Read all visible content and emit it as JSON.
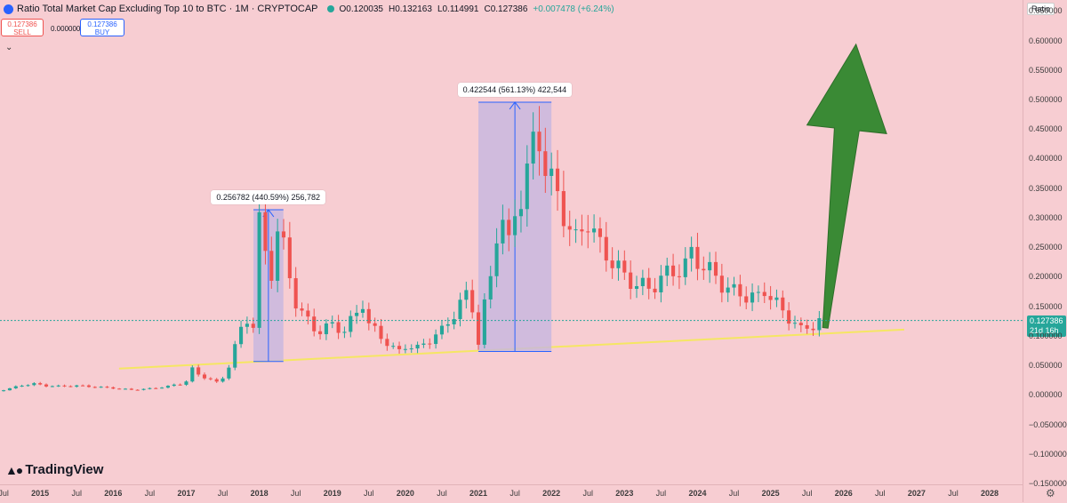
{
  "legend": {
    "title": "Ratio Total Market Cap Excluding Top 10 to BTC · 1M · CRYPTOCAP",
    "open": "O0.120035",
    "high": "H0.132163",
    "low": "L0.114991",
    "close": "C0.127386",
    "change": "+0.007478 (+6.24%)"
  },
  "trade": {
    "sell_price": "0.127386",
    "sell_label": "SELL",
    "spread": "0.000000",
    "buy_price": "0.127386",
    "buy_label": "BUY"
  },
  "price_axis": {
    "badge": "Ratio",
    "current_price": "0.127386",
    "countdown": "21d 16h"
  },
  "logo_text": "TradingView",
  "colors": {
    "background": "#f7cdd2",
    "up": "#26a69a",
    "down": "#ef5350",
    "measure_fill": "#c5b6e0",
    "measure_line": "#2962ff",
    "trendline": "#f5e663",
    "arrow": "#3a8a35"
  },
  "chart_data": {
    "type": "candlestick",
    "title": "Ratio Total Market Cap Excluding Top 10 to BTC",
    "interval": "1M",
    "ylim": [
      -0.15,
      0.67
    ],
    "x_range_years": [
      2014.45,
      2028.45
    ],
    "y_ticks": [
      0.65,
      0.6,
      0.55,
      0.5,
      0.45,
      0.4,
      0.35,
      0.3,
      0.25,
      0.2,
      0.15,
      0.1,
      0.05,
      0.0,
      -0.05,
      -0.1,
      -0.15
    ],
    "y_tick_labels": [
      "0.650000",
      "0.600000",
      "0.550000",
      "0.500000",
      "0.450000",
      "0.400000",
      "0.350000",
      "0.300000",
      "0.250000",
      "0.200000",
      "0.150000",
      "0.100000",
      "0.050000",
      "0.000000",
      "−0.050000",
      "−0.100000",
      "−0.150000"
    ],
    "x_ticks": [
      {
        "t": 2014.5,
        "label": "Jul"
      },
      {
        "t": 2015,
        "label": "2015"
      },
      {
        "t": 2015.5,
        "label": "Jul"
      },
      {
        "t": 2016,
        "label": "2016"
      },
      {
        "t": 2016.5,
        "label": "Jul"
      },
      {
        "t": 2017,
        "label": "2017"
      },
      {
        "t": 2017.5,
        "label": "Jul"
      },
      {
        "t": 2018,
        "label": "2018"
      },
      {
        "t": 2018.5,
        "label": "Jul"
      },
      {
        "t": 2019,
        "label": "2019"
      },
      {
        "t": 2019.5,
        "label": "Jul"
      },
      {
        "t": 2020,
        "label": "2020"
      },
      {
        "t": 2020.5,
        "label": "Jul"
      },
      {
        "t": 2021,
        "label": "2021"
      },
      {
        "t": 2021.5,
        "label": "Jul"
      },
      {
        "t": 2022,
        "label": "2022"
      },
      {
        "t": 2022.5,
        "label": "Jul"
      },
      {
        "t": 2023,
        "label": "2023"
      },
      {
        "t": 2023.5,
        "label": "Jul"
      },
      {
        "t": 2024,
        "label": "2024"
      },
      {
        "t": 2024.5,
        "label": "Jul"
      },
      {
        "t": 2025,
        "label": "2025"
      },
      {
        "t": 2025.5,
        "label": "Jul"
      },
      {
        "t": 2026,
        "label": "2026"
      },
      {
        "t": 2026.5,
        "label": "Jul"
      },
      {
        "t": 2027,
        "label": "2027"
      },
      {
        "t": 2027.5,
        "label": "Jul"
      },
      {
        "t": 2028,
        "label": "2028"
      }
    ],
    "closes": [
      [
        2014.25,
        0.005
      ],
      [
        2014.42,
        0.008
      ],
      [
        2014.58,
        0.012
      ],
      [
        2014.75,
        0.018
      ],
      [
        2014.92,
        0.02
      ],
      [
        2015.08,
        0.017
      ],
      [
        2015.25,
        0.016
      ],
      [
        2015.5,
        0.017
      ],
      [
        2015.75,
        0.015
      ],
      [
        2016.0,
        0.013
      ],
      [
        2016.25,
        0.01
      ],
      [
        2016.5,
        0.012
      ],
      [
        2016.75,
        0.016
      ],
      [
        2016.92,
        0.02
      ],
      [
        2017.0,
        0.025
      ],
      [
        2017.08,
        0.045
      ],
      [
        2017.17,
        0.035
      ],
      [
        2017.25,
        0.032
      ],
      [
        2017.33,
        0.028
      ],
      [
        2017.42,
        0.022
      ],
      [
        2017.5,
        0.03
      ],
      [
        2017.58,
        0.05
      ],
      [
        2017.67,
        0.085
      ],
      [
        2017.75,
        0.11
      ],
      [
        2017.83,
        0.13
      ],
      [
        2017.92,
        0.12
      ],
      [
        2018.0,
        0.29
      ],
      [
        2018.08,
        0.24
      ],
      [
        2018.17,
        0.21
      ],
      [
        2018.25,
        0.28
      ],
      [
        2018.33,
        0.25
      ],
      [
        2018.42,
        0.2
      ],
      [
        2018.5,
        0.16
      ],
      [
        2018.58,
        0.14
      ],
      [
        2018.67,
        0.125
      ],
      [
        2018.75,
        0.115
      ],
      [
        2018.83,
        0.11
      ],
      [
        2018.92,
        0.115
      ],
      [
        2019.0,
        0.12
      ],
      [
        2019.17,
        0.11
      ],
      [
        2019.33,
        0.14
      ],
      [
        2019.42,
        0.16
      ],
      [
        2019.5,
        0.12
      ],
      [
        2019.67,
        0.1
      ],
      [
        2019.83,
        0.08
      ],
      [
        2019.92,
        0.075
      ],
      [
        2020.0,
        0.085
      ],
      [
        2020.17,
        0.08
      ],
      [
        2020.33,
        0.095
      ],
      [
        2020.5,
        0.11
      ],
      [
        2020.67,
        0.14
      ],
      [
        2020.83,
        0.17
      ],
      [
        2020.92,
        0.15
      ],
      [
        2021.0,
        0.09
      ],
      [
        2021.08,
        0.15
      ],
      [
        2021.17,
        0.2
      ],
      [
        2021.25,
        0.28
      ],
      [
        2021.33,
        0.3
      ],
      [
        2021.42,
        0.25
      ],
      [
        2021.5,
        0.31
      ],
      [
        2021.58,
        0.34
      ],
      [
        2021.67,
        0.38
      ],
      [
        2021.75,
        0.42
      ],
      [
        2021.83,
        0.44
      ],
      [
        2021.92,
        0.39
      ],
      [
        2022.0,
        0.36
      ],
      [
        2022.17,
        0.31
      ],
      [
        2022.33,
        0.26
      ],
      [
        2022.5,
        0.3
      ],
      [
        2022.67,
        0.25
      ],
      [
        2022.83,
        0.23
      ],
      [
        2022.92,
        0.215
      ],
      [
        2023.0,
        0.2
      ],
      [
        2023.17,
        0.19
      ],
      [
        2023.33,
        0.18
      ],
      [
        2023.5,
        0.2
      ],
      [
        2023.67,
        0.21
      ],
      [
        2023.83,
        0.22
      ],
      [
        2023.92,
        0.24
      ],
      [
        2024.0,
        0.23
      ],
      [
        2024.17,
        0.21
      ],
      [
        2024.33,
        0.19
      ],
      [
        2024.5,
        0.175
      ],
      [
        2024.67,
        0.17
      ],
      [
        2024.83,
        0.165
      ],
      [
        2024.92,
        0.18
      ],
      [
        2025.0,
        0.17
      ],
      [
        2025.17,
        0.14
      ],
      [
        2025.33,
        0.125
      ],
      [
        2025.42,
        0.11
      ],
      [
        2025.5,
        0.115
      ],
      [
        2025.58,
        0.12
      ],
      [
        2025.67,
        0.127386
      ]
    ],
    "annotations": [
      {
        "type": "price_range",
        "label": "0.256782 (440.59%) 256,782",
        "t_start": 2017.92,
        "t_end": 2018.33,
        "y_low": 0.058,
        "y_high": 0.315
      },
      {
        "type": "price_range",
        "label": "0.422544 (561.13%) 422,544",
        "t_start": 2021.0,
        "t_end": 2022.0,
        "y_low": 0.075,
        "y_high": 0.497
      },
      {
        "type": "trendline",
        "from": [
          2016.08,
          0.046
        ],
        "to": [
          2026.83,
          0.112
        ]
      },
      {
        "type": "arrow",
        "from": [
          2025.75,
          0.115
        ],
        "to": [
          2026.17,
          0.595
        ]
      }
    ]
  }
}
